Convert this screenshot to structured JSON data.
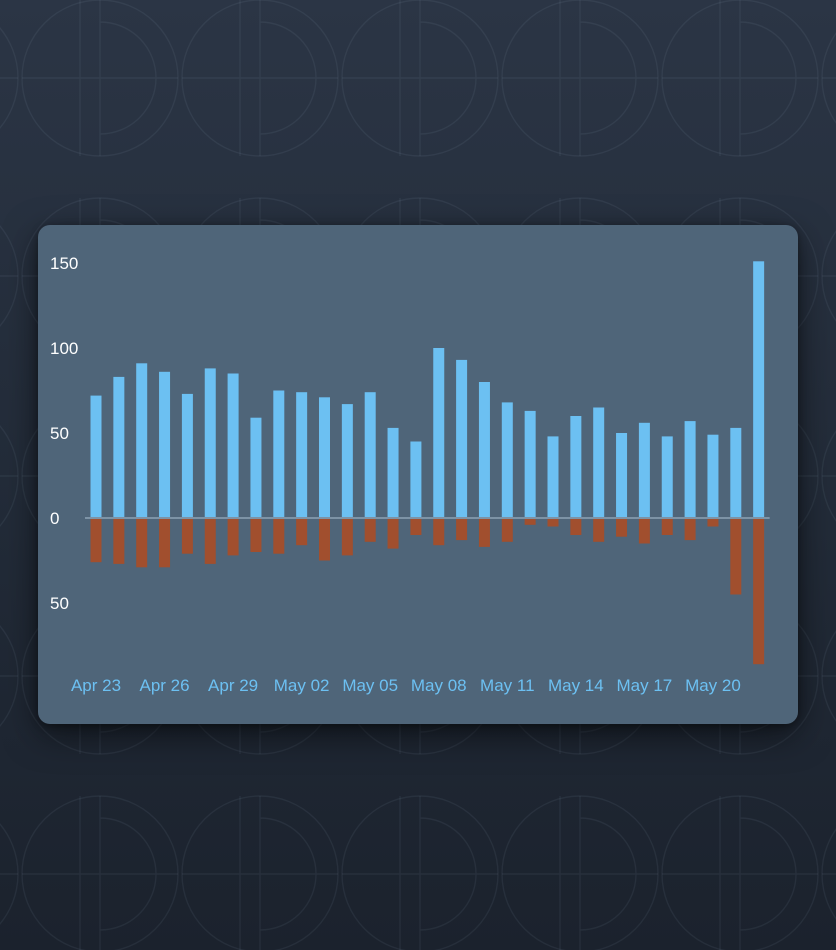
{
  "chart_data": {
    "type": "bar",
    "categories": [
      "Apr 23",
      "Apr 24",
      "Apr 25",
      "Apr 26",
      "Apr 27",
      "Apr 28",
      "Apr 29",
      "Apr 30",
      "May 01",
      "May 02",
      "May 03",
      "May 04",
      "May 05",
      "May 06",
      "May 07",
      "May 08",
      "May 09",
      "May 10",
      "May 11",
      "May 12",
      "May 13",
      "May 14",
      "May 15",
      "May 16",
      "May 17",
      "May 18",
      "May 19",
      "May 20",
      "May 21",
      "May 22"
    ],
    "x_tick_labels": [
      "Apr 23",
      "Apr 26",
      "Apr 29",
      "May 02",
      "May 05",
      "May 08",
      "May 11",
      "May 14",
      "May 17",
      "May 20"
    ],
    "y_tick_labels": [
      "150",
      "100",
      "50",
      "0",
      "50"
    ],
    "y_tick_values": [
      150,
      100,
      50,
      0,
      -50
    ],
    "series": [
      {
        "values": [
          72,
          83,
          91,
          86,
          73,
          88,
          85,
          59,
          75,
          74,
          71,
          67,
          74,
          53,
          45,
          100,
          93,
          80,
          68,
          63,
          48,
          60,
          65,
          50,
          56,
          48,
          57,
          49,
          53,
          151
        ],
        "color": "#6cc0f2"
      },
      {
        "values": [
          -26,
          -27,
          -29,
          -29,
          -21,
          -27,
          -22,
          -20,
          -21,
          -16,
          -25,
          -22,
          -14,
          -18,
          -10,
          -16,
          -13,
          -17,
          -14,
          -4,
          -5,
          -10,
          -14,
          -11,
          -15,
          -10,
          -13,
          -5,
          -45,
          -86
        ],
        "color": "#a14f2e"
      }
    ],
    "ylim": [
      -90,
      160
    ],
    "grid": false,
    "legend": "none",
    "title": "",
    "xlabel": "",
    "ylabel": ""
  },
  "colors": {
    "axis_text": "#ffffff",
    "date_text": "#6cc0f2",
    "zero_line": "#7d93a6"
  }
}
